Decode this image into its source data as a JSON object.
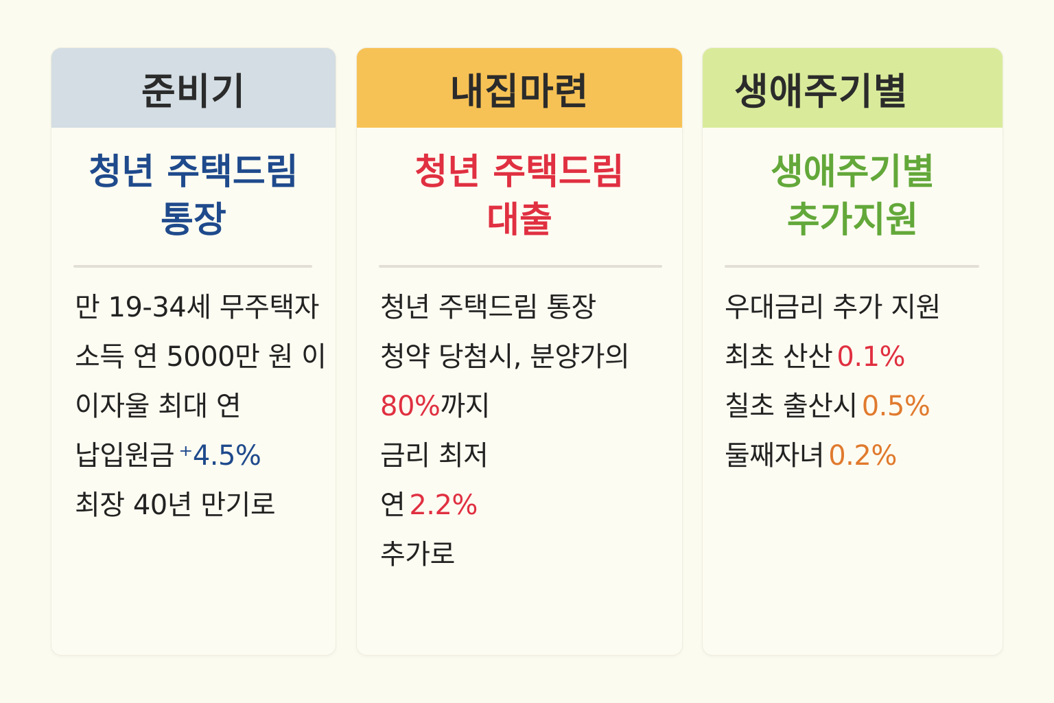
{
  "colors": {
    "header_1": "#d3dde3",
    "header_2": "#f7c255",
    "header_3": "#d9eb9b",
    "title_1": "#1f4a8c",
    "title_2": "#e03041",
    "title_3": "#63a83a",
    "accent_blue": "#1f4a8c",
    "accent_red": "#e03041",
    "accent_orange": "#e07a2e"
  },
  "cards": [
    {
      "header": "준비기",
      "title": [
        "청년 주택드림",
        "통장"
      ],
      "lines": [
        {
          "text": "만 19-34세 무주택자",
          "highlight": ""
        },
        {
          "text": "소득 연 5000만 원 이",
          "highlight": ""
        },
        {
          "text": "이자울 최대 연",
          "highlight": ""
        },
        {
          "text": "납입원금",
          "highlight": "⁺4.5%"
        },
        {
          "text": "최장 40년 만기로",
          "highlight": ""
        }
      ]
    },
    {
      "header": "내집마련",
      "title": [
        "청년 주택드림",
        "대출"
      ],
      "lines": [
        {
          "text": "청년 주택드림 통장",
          "highlight": ""
        },
        {
          "text": "청약 당첨시, 분양가의",
          "highlight": ""
        },
        {
          "prefix": "80%",
          "text": "까지",
          "highlight": ""
        },
        {
          "text": "금리 최저",
          "highlight": ""
        },
        {
          "text": "연",
          "highlight": "2.2%"
        },
        {
          "text": "추가로",
          "highlight": ""
        }
      ]
    },
    {
      "header": "생애주기별",
      "title": [
        "생애주기별",
        "추가지원"
      ],
      "lines": [
        {
          "text": "우대금리 추가 지원",
          "highlight": ""
        },
        {
          "text": "최초 산산",
          "highlight": "0.1%"
        },
        {
          "text": "칠초 출산시",
          "highlight": "0.5%"
        },
        {
          "text": "둘째자녀",
          "highlight": "0.2%"
        }
      ]
    }
  ]
}
